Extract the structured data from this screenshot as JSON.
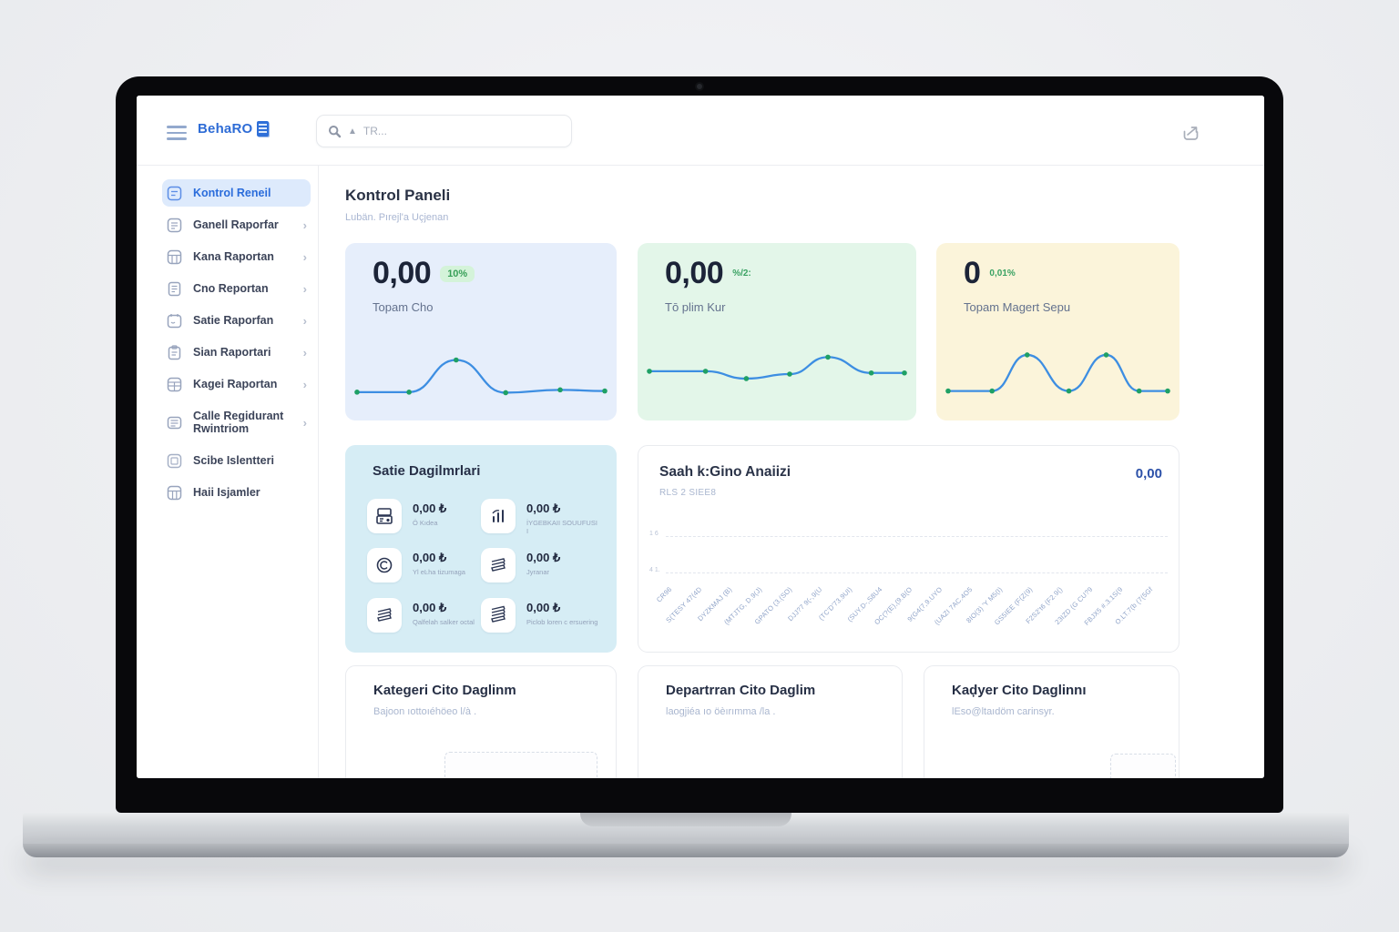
{
  "brand": {
    "name": "BehaRO"
  },
  "topbar": {
    "search_placeholder": "TR...",
    "search_tri": "▲"
  },
  "sidebar": {
    "items": [
      {
        "label": "Kontrol Reneil"
      },
      {
        "label": "Ganell Raporfar"
      },
      {
        "label": "Kana Raportan"
      },
      {
        "label": "Cno Reportan"
      },
      {
        "label": "Satie Raporfan"
      },
      {
        "label": "Sian Raportari"
      },
      {
        "label": "Kagei Raportan"
      },
      {
        "label": "Calle Regidurant Rwintriom"
      },
      {
        "label": "Scibe Islentteri"
      },
      {
        "label": "Haii Isjamler"
      }
    ]
  },
  "page": {
    "title": "Kontrol Paneli",
    "subtitle": "Lubän. Pırejl'a Uçjenan"
  },
  "stats": [
    {
      "value": "0,00",
      "badge": "10%",
      "label": "Topam Cho"
    },
    {
      "value": "0,00",
      "badge": "%/2:",
      "label": "Tō plim Kur"
    },
    {
      "value": "0",
      "badge": "0,01%",
      "label": "Topam Magert Sepu"
    }
  ],
  "sales": {
    "title": "Satie Dagilmrlari",
    "items": [
      {
        "value": "0,00 ₺",
        "label": "Ö Kıdea"
      },
      {
        "value": "0,00 ₺",
        "label": "İYGEBKAII SOUUFUSI I"
      },
      {
        "value": "0,00 ₺",
        "label": "Yl eĿha tizumaga"
      },
      {
        "value": "0,00 ₺",
        "label": "Jyranar"
      },
      {
        "value": "0,00 ₺",
        "label": "Qalfelah salker octal"
      },
      {
        "value": "0,00 ₺",
        "label": "Piclob loren c ersuering"
      }
    ]
  },
  "hourly": {
    "title": "Saah k:Gino Anaiizi",
    "subtitle": "RLS 2 SIEE8",
    "total": "0,00"
  },
  "bottom_cards": [
    {
      "title": "Kategeri Cito Daglinm",
      "subtitle": "Bajoon ıottoıéhöeo l/à ."
    },
    {
      "title": "Departrran Cito Daglim",
      "subtitle": "laogjiéa ıo öèırımma /la ."
    },
    {
      "title": "Kaḑyer Cito Daglinnı",
      "subtitle": "lEso@ltaıdöm carinsyr."
    }
  ],
  "chart_data": [
    {
      "type": "line",
      "name": "toplam-ciro-sparkline",
      "grid": false,
      "axes": false,
      "line_color": "#3d8ee2",
      "dot_color": "#1fa065",
      "x": [
        0,
        21,
        40,
        60,
        82,
        100
      ],
      "values": [
        18,
        18,
        75,
        17,
        22,
        20
      ]
    },
    {
      "type": "line",
      "name": "toplam-kar-sparkline",
      "grid": false,
      "axes": false,
      "line_color": "#3d8ee2",
      "dot_color": "#1fa065",
      "x": [
        0,
        22,
        38,
        55,
        70,
        87,
        100
      ],
      "values": [
        55,
        55,
        42,
        50,
        80,
        52,
        52
      ]
    },
    {
      "type": "line",
      "name": "toplam-musteri-sparkline",
      "grid": false,
      "axes": false,
      "line_color": "#3d8ee2",
      "dot_color": "#1fa065",
      "x": [
        0,
        20,
        36,
        55,
        72,
        87,
        100
      ],
      "values": [
        20,
        20,
        84,
        20,
        84,
        20,
        20
      ]
    },
    {
      "type": "line",
      "name": "saatlik-ciro-analizi",
      "title": "Saah k:Gino Anaiizi",
      "legend": "none",
      "grid": "dashed-horizontal",
      "total": "0,00",
      "y_ticks": [
        "1 6",
        "4 1."
      ],
      "x_labels": [
        "CR96",
        "S(TESY 47(4D",
        "DYZKMAJ (B)",
        "(MTJTG, D.9(J)",
        "GPATO (3.(SO)",
        "DJJ?7 9(-,9(U",
        "(TC'D'73.9UI)",
        "(SUY.D-,S8U4",
        "OC(?(E),(9.B(O",
        "9(G4(7,9.UYO",
        "(UAZI 7AC.4O5",
        "8IO(3) 'Y M5(I)",
        "GS5IEE (F(Z(9)",
        "F2S2't6 (F2.9()",
        "23IZD (G CU?9",
        "FBJX5 #.3.1S(9",
        "O.LT.7(b (7(5Gf"
      ],
      "series": [],
      "values": []
    }
  ]
}
